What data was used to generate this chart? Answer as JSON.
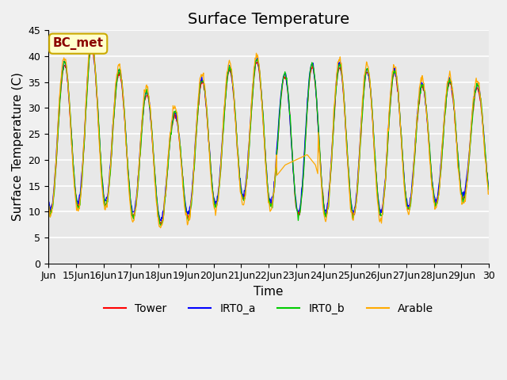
{
  "title": "Surface Temperature",
  "xlabel": "Time",
  "ylabel": "Surface Temperature (C)",
  "annotation": "BC_met",
  "ylim": [
    0,
    45
  ],
  "series_colors": {
    "Tower": "#ff0000",
    "IRT0_a": "#0000ff",
    "IRT0_b": "#00cc00",
    "Arable": "#ffaa00"
  },
  "legend_order": [
    "Tower",
    "IRT0_a",
    "IRT0_b",
    "Arable"
  ],
  "fig_bg": "#f0f0f0",
  "ax_bg": "#e8e8e8",
  "grid_color": "#ffffff",
  "title_fontsize": 14,
  "label_fontsize": 11,
  "tick_fontsize": 9,
  "annotation_fontsize": 11,
  "n_days": 16,
  "start_day": 14,
  "samples_per_day": 48,
  "day_mins": [
    10,
    12,
    11,
    8,
    7.5,
    10,
    12,
    13,
    10,
    9,
    10,
    9,
    10,
    11,
    12,
    13
  ],
  "day_maxs": [
    38,
    42,
    37,
    33,
    28,
    35,
    37,
    39,
    36,
    38,
    38,
    37,
    37,
    34,
    35,
    34
  ]
}
